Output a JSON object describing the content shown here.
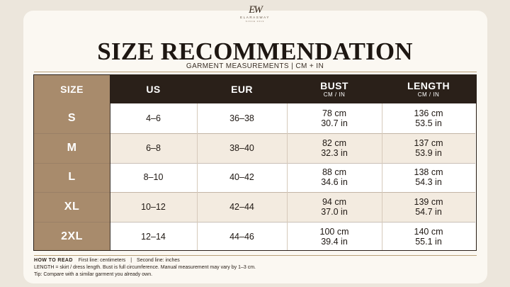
{
  "brand": {
    "monogram": "EW",
    "name": "ELARASWAY",
    "tagline": "SINCE 2019"
  },
  "title": "SIZE RECOMMENDATION",
  "subtitle": "GARMENT MEASUREMENTS  |  CM + IN",
  "table": {
    "columns": [
      {
        "label": "SIZE",
        "unit": ""
      },
      {
        "label": "US",
        "unit": ""
      },
      {
        "label": "EUR",
        "unit": ""
      },
      {
        "label": "BUST",
        "unit": "CM / IN"
      },
      {
        "label": "LENGTH",
        "unit": "CM / IN"
      }
    ],
    "rows": [
      {
        "size": "S",
        "us": "4–6",
        "eur": "36–38",
        "bust_cm": "78 cm",
        "bust_in": "30.7 in",
        "length_cm": "136 cm",
        "length_in": "53.5 in"
      },
      {
        "size": "M",
        "us": "6–8",
        "eur": "38–40",
        "bust_cm": "82 cm",
        "bust_in": "32.3 in",
        "length_cm": "137 cm",
        "length_in": "53.9 in"
      },
      {
        "size": "L",
        "us": "8–10",
        "eur": "40–42",
        "bust_cm": "88 cm",
        "bust_in": "34.6 in",
        "length_cm": "138 cm",
        "length_in": "54.3 in"
      },
      {
        "size": "XL",
        "us": "10–12",
        "eur": "42–44",
        "bust_cm": "94 cm",
        "bust_in": "37.0 in",
        "length_cm": "139 cm",
        "length_in": "54.7 in"
      },
      {
        "size": "2XL",
        "us": "12–14",
        "eur": "44–46",
        "bust_cm": "100 cm",
        "bust_in": "39.4 in",
        "length_cm": "140 cm",
        "length_in": "55.1 in"
      }
    ]
  },
  "footer": {
    "how_label": "HOW TO READ",
    "first_line": "First line: centimeters",
    "divider": "|",
    "second_line": "Second line: inches",
    "note": "LENGTH = skirt / dress length. Bust is full circumference. Manual measurement may vary by 1–3 cm.",
    "tip": "Tip: Compare with a similar garment you already own."
  },
  "colors": {
    "accent_tan": "#a88b6c",
    "header_dark": "#2a2019",
    "row_alt": "#f3ebe0",
    "row_plain": "#ffffff"
  }
}
